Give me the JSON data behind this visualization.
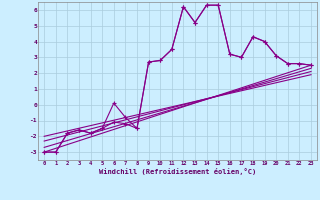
{
  "xlabel": "Windchill (Refroidissement éolien,°C)",
  "bg_color": "#cceeff",
  "grid_color": "#aaccdd",
  "line_color": "#880088",
  "xlim": [
    -0.5,
    23.5
  ],
  "ylim": [
    -3.5,
    6.5
  ],
  "xtick_labels": [
    "0",
    "1",
    "2",
    "3",
    "4",
    "5",
    "6",
    "7",
    "8",
    "9",
    "10",
    "11",
    "12",
    "13",
    "14",
    "15",
    "16",
    "17",
    "18",
    "19",
    "20",
    "21",
    "22",
    "23"
  ],
  "ytick_labels": [
    "-3",
    "-2",
    "-1",
    "0",
    "1",
    "2",
    "3",
    "4",
    "5",
    "6"
  ],
  "series1_x": [
    0,
    1,
    2,
    3,
    4,
    5,
    6,
    7,
    8,
    9,
    10,
    11,
    12,
    13,
    14,
    15,
    16,
    17,
    18,
    19,
    20,
    21,
    22,
    23
  ],
  "series1_y": [
    -3.0,
    -3.0,
    -1.8,
    -1.6,
    -1.8,
    -1.5,
    -1.1,
    -1.2,
    -1.5,
    2.7,
    2.8,
    3.5,
    6.2,
    5.2,
    6.3,
    6.3,
    3.2,
    3.0,
    4.3,
    4.0,
    3.1,
    2.6,
    2.6,
    2.5
  ],
  "series2_x": [
    0,
    1,
    2,
    3,
    4,
    5,
    6,
    7,
    8,
    9,
    10,
    11,
    12,
    13,
    14,
    15,
    16,
    17,
    18,
    19,
    20,
    21,
    22,
    23
  ],
  "series2_y": [
    -3.0,
    -3.0,
    -1.8,
    -1.6,
    -1.8,
    -1.5,
    0.1,
    -0.8,
    -1.5,
    2.7,
    2.8,
    3.5,
    6.2,
    5.2,
    6.3,
    6.3,
    3.2,
    3.0,
    4.3,
    4.0,
    3.1,
    2.6,
    2.6,
    2.5
  ],
  "line1_x": [
    0,
    23
  ],
  "line1_y": [
    -3.0,
    2.5
  ],
  "line2_x": [
    0,
    23
  ],
  "line2_y": [
    -2.7,
    2.3
  ],
  "line3_x": [
    0,
    23
  ],
  "line3_y": [
    -2.3,
    2.1
  ],
  "line4_x": [
    0,
    23
  ],
  "line4_y": [
    -2.0,
    1.9
  ]
}
